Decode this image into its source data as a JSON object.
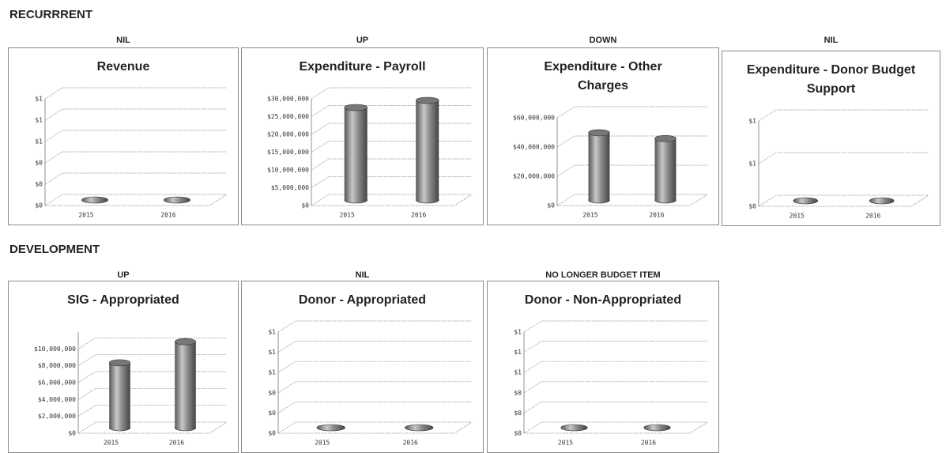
{
  "sections": [
    "RECURRRENT",
    "DEVELOPMENT"
  ],
  "chart_data": [
    {
      "type": "bar",
      "status": "NIL",
      "title": "Revenue",
      "categories": [
        "2015",
        "2016"
      ],
      "values": [
        0,
        0
      ],
      "color": "#8c8c8c",
      "ylim": [
        0,
        1
      ],
      "yticks": [
        {
          "value": 0,
          "label": "$0"
        },
        {
          "value": 0.2,
          "label": "$0"
        },
        {
          "value": 0.4,
          "label": "$0"
        },
        {
          "value": 0.6,
          "label": "$1"
        },
        {
          "value": 0.8,
          "label": "$1"
        },
        {
          "value": 1,
          "label": "$1"
        }
      ],
      "grid": true
    },
    {
      "type": "bar",
      "status": "UP",
      "title": "Expenditure - Payroll",
      "categories": [
        "2015",
        "2016"
      ],
      "values": [
        26000000,
        28000000
      ],
      "color": "#8c8c8c",
      "ylim": [
        0,
        30000000
      ],
      "yticks": [
        {
          "value": 0,
          "label": "$0"
        },
        {
          "value": 5000000,
          "label": "$5,000,000"
        },
        {
          "value": 10000000,
          "label": "$10,000,000"
        },
        {
          "value": 15000000,
          "label": "$15,000,000"
        },
        {
          "value": 20000000,
          "label": "$20,000,000"
        },
        {
          "value": 25000000,
          "label": "$25,000,000"
        },
        {
          "value": 30000000,
          "label": "$30,000,000"
        }
      ],
      "grid": true
    },
    {
      "type": "bar",
      "status": "DOWN",
      "title": "Expenditure - Other Charges",
      "categories": [
        "2015",
        "2016"
      ],
      "values": [
        46000000,
        42000000
      ],
      "color": "#8c8c8c",
      "ylim": [
        0,
        60000000
      ],
      "yticks": [
        {
          "value": 0,
          "label": "$0"
        },
        {
          "value": 20000000,
          "label": "$20,000,000"
        },
        {
          "value": 40000000,
          "label": "$40,000,000"
        },
        {
          "value": 60000000,
          "label": "$60,000,000"
        }
      ],
      "grid": true
    },
    {
      "type": "bar",
      "status": "NIL",
      "title": "Expenditure - Donor Budget Support",
      "categories": [
        "2015",
        "2016"
      ],
      "values": [
        0,
        0
      ],
      "color": "#8c8c8c",
      "ylim": [
        0,
        1
      ],
      "yticks": [
        {
          "value": 0,
          "label": "$0"
        },
        {
          "value": 0.5,
          "label": "$1"
        },
        {
          "value": 1,
          "label": "$1"
        }
      ],
      "grid": true
    },
    {
      "type": "bar",
      "status": "UP",
      "title": "SIG - Appropriated",
      "categories": [
        "2015",
        "2016"
      ],
      "values": [
        7700000,
        10200000
      ],
      "color": "#8c8c8c",
      "ylim": [
        0,
        12000000
      ],
      "yticks": [
        {
          "value": 0,
          "label": "$0"
        },
        {
          "value": 2000000,
          "label": "$2,000,000"
        },
        {
          "value": 4000000,
          "label": "$4,000,000"
        },
        {
          "value": 6000000,
          "label": "$6,000,000"
        },
        {
          "value": 8000000,
          "label": "$8,000,000"
        },
        {
          "value": 10000000,
          "label": "$10,000,000"
        }
      ],
      "grid": true
    },
    {
      "type": "bar",
      "status": "NIL",
      "title": "Donor - Appropriated",
      "categories": [
        "2015",
        "2016"
      ],
      "values": [
        0,
        0
      ],
      "color": "#8c8c8c",
      "ylim": [
        0,
        1
      ],
      "yticks": [
        {
          "value": 0,
          "label": "$0"
        },
        {
          "value": 0.2,
          "label": "$0"
        },
        {
          "value": 0.4,
          "label": "$0"
        },
        {
          "value": 0.6,
          "label": "$1"
        },
        {
          "value": 0.8,
          "label": "$1"
        },
        {
          "value": 1,
          "label": "$1"
        }
      ],
      "grid": true
    },
    {
      "type": "bar",
      "status": "NO LONGER BUDGET ITEM",
      "title": "Donor - Non-Appropriated",
      "categories": [
        "2015",
        "2016"
      ],
      "values": [
        0,
        0
      ],
      "color": "#8c8c8c",
      "ylim": [
        0,
        1
      ],
      "yticks": [
        {
          "value": 0,
          "label": "$0"
        },
        {
          "value": 0.2,
          "label": "$0"
        },
        {
          "value": 0.4,
          "label": "$0"
        },
        {
          "value": 0.6,
          "label": "$1"
        },
        {
          "value": 0.8,
          "label": "$1"
        },
        {
          "value": 1,
          "label": "$1"
        }
      ],
      "grid": true
    }
  ]
}
